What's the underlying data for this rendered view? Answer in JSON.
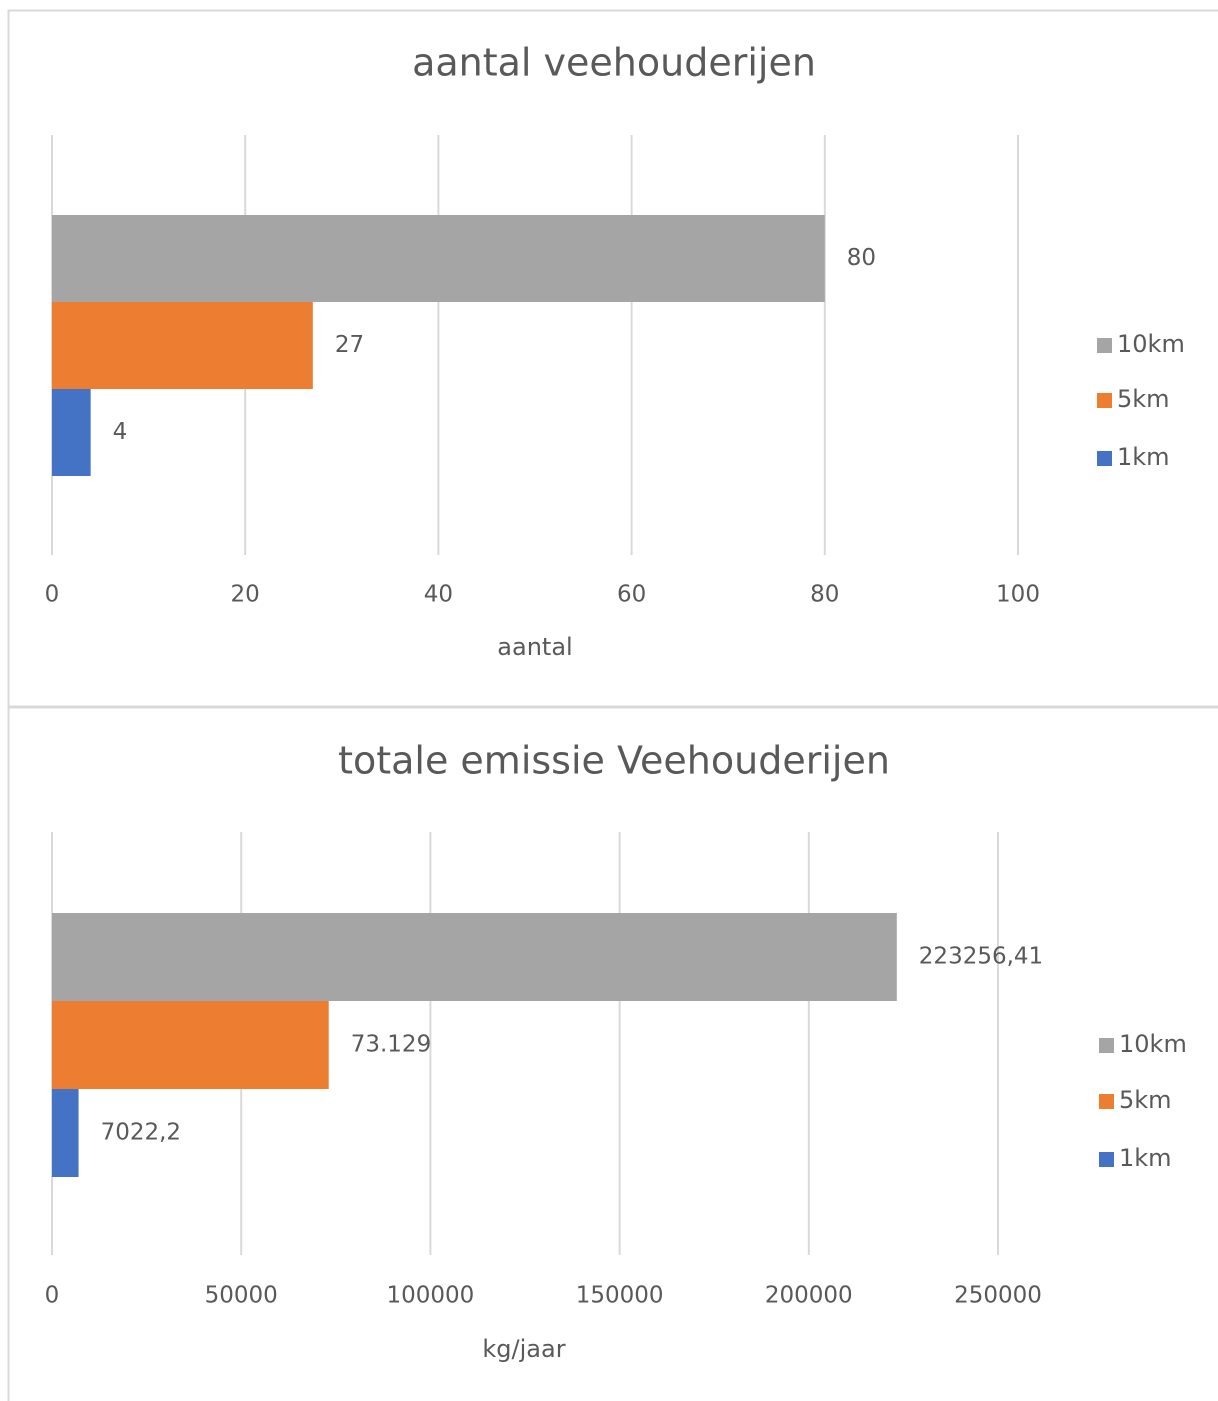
{
  "chart_data": [
    {
      "type": "barh",
      "title": "aantal veehouderijen",
      "x_label": "aantal",
      "categories": [
        null
      ],
      "series": [
        {
          "name": "10km",
          "color": "#a5a5a5",
          "values": [
            80
          ]
        },
        {
          "name": "5km",
          "color": "#ed7d31",
          "values": [
            27
          ]
        },
        {
          "name": "1km",
          "color": "#4472c4",
          "values": [
            4
          ]
        }
      ],
      "xlim": [
        0,
        100
      ],
      "xticks": [
        0,
        20,
        40,
        60,
        80,
        100
      ],
      "grid": true,
      "legend": "right"
    },
    {
      "type": "barh",
      "title": "totale emissie Veehouderijen",
      "x_label": "kg/jaar",
      "categories": [
        null
      ],
      "series": [
        {
          "name": "10km",
          "color": "#a5a5a5",
          "values": [
            223256.41
          ],
          "value_labels": [
            "223256,41"
          ]
        },
        {
          "name": "5km",
          "color": "#ed7d31",
          "values": [
            73129
          ],
          "value_labels": [
            "73.129"
          ]
        },
        {
          "name": "1km",
          "color": "#4472c4",
          "values": [
            7022.2
          ],
          "value_labels": [
            "7022,2"
          ]
        }
      ],
      "xlim": [
        0,
        250000
      ],
      "xticks": [
        0,
        50000,
        100000,
        150000,
        200000,
        250000
      ],
      "grid": true,
      "legend": "right"
    }
  ]
}
